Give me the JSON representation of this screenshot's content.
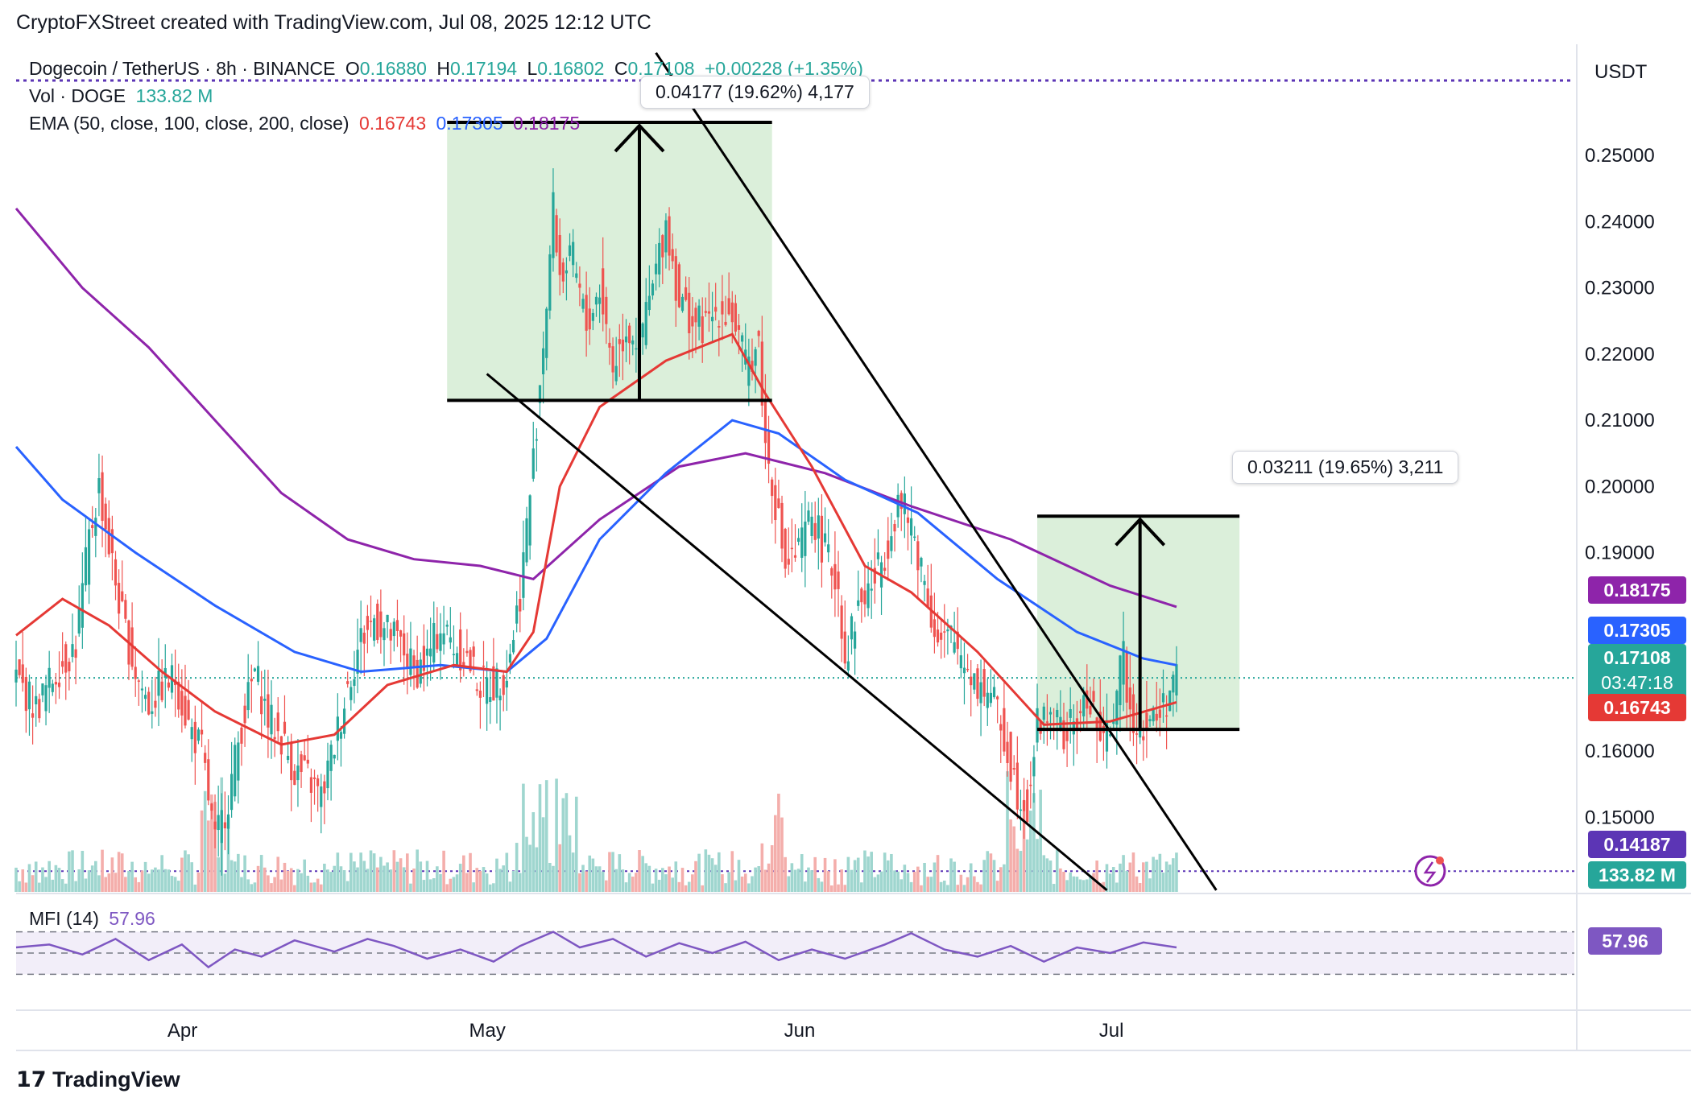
{
  "header": {
    "credit": "CryptoFXStreet created with TradingView.com, Jul 08, 2025 12:12 UTC",
    "symbol": "Dogecoin / TetherUS · 8h · BINANCE",
    "o_label": "O",
    "o_value": "0.16880",
    "h_label": "H",
    "h_value": "0.17194",
    "l_label": "L",
    "l_value": "0.16802",
    "c_label": "C",
    "c_value": "0.17108",
    "change": "+0.00228 (+1.35%)",
    "vol_label": "Vol · DOGE",
    "vol_value": "133.82 M",
    "ema_label": "EMA (50, close, 100, close, 200, close)",
    "ema50": "0.16743",
    "ema100": "0.17305",
    "ema200": "0.18175"
  },
  "currency": "USDT",
  "colors": {
    "up": "#26a69a",
    "down": "#ef5350",
    "ema50": "#e53935",
    "ema100": "#2962ff",
    "ema200": "#8e24aa",
    "mfi": "#7e57c2",
    "zone": "#d5ecd3"
  },
  "measure_boxes": [
    {
      "label": "0.04177 (19.62%) 4,177"
    },
    {
      "label": "0.03211 (19.65%) 3,211"
    }
  ],
  "price_tags": {
    "ema200": "0.18175",
    "ema100": "0.17305",
    "last": "0.17108",
    "countdown": "03:47:18",
    "ema50": "0.16743",
    "level": "0.14187",
    "volume": "133.82 M",
    "mfi": "57.96"
  },
  "mfi": {
    "label": "MFI (14)",
    "value": "57.96"
  },
  "footer": {
    "brand": "TradingView"
  },
  "chart_data": {
    "type": "candlestick",
    "title": "Dogecoin / TetherUS · 8h · BINANCE",
    "ylabel": "USDT",
    "ylim": [
      0.1385,
      0.2668
    ],
    "y_ticks": [
      "0.25000",
      "0.24000",
      "0.23000",
      "0.22000",
      "0.21000",
      "0.20000",
      "0.19000",
      "0.16000",
      "0.15000"
    ],
    "x_ticks": [
      "Apr",
      "May",
      "Jun",
      "Jul"
    ],
    "close_path": [
      [
        0,
        0.171
      ],
      [
        6,
        0.1665
      ],
      [
        12,
        0.172
      ],
      [
        18,
        0.176
      ],
      [
        22,
        0.192
      ],
      [
        25,
        0.2
      ],
      [
        28,
        0.191
      ],
      [
        32,
        0.18
      ],
      [
        36,
        0.172
      ],
      [
        40,
        0.167
      ],
      [
        44,
        0.17
      ],
      [
        48,
        0.171
      ],
      [
        52,
        0.164
      ],
      [
        56,
        0.16
      ],
      [
        60,
        0.146
      ],
      [
        64,
        0.153
      ],
      [
        68,
        0.164
      ],
      [
        72,
        0.172
      ],
      [
        76,
        0.165
      ],
      [
        80,
        0.162
      ],
      [
        84,
        0.157
      ],
      [
        88,
        0.156
      ],
      [
        92,
        0.153
      ],
      [
        96,
        0.161
      ],
      [
        100,
        0.17
      ],
      [
        104,
        0.177
      ],
      [
        108,
        0.18
      ],
      [
        112,
        0.178
      ],
      [
        116,
        0.176
      ],
      [
        120,
        0.172
      ],
      [
        124,
        0.174
      ],
      [
        128,
        0.179
      ],
      [
        132,
        0.176
      ],
      [
        136,
        0.174
      ],
      [
        140,
        0.17
      ],
      [
        144,
        0.17
      ],
      [
        148,
        0.172
      ],
      [
        152,
        0.184
      ],
      [
        156,
        0.204
      ],
      [
        160,
        0.228
      ],
      [
        162,
        0.242
      ],
      [
        164,
        0.232
      ],
      [
        168,
        0.234
      ],
      [
        172,
        0.224
      ],
      [
        176,
        0.23
      ],
      [
        180,
        0.218
      ],
      [
        184,
        0.224
      ],
      [
        188,
        0.222
      ],
      [
        192,
        0.23
      ],
      [
        196,
        0.24
      ],
      [
        200,
        0.228
      ],
      [
        204,
        0.225
      ],
      [
        208,
        0.224
      ],
      [
        212,
        0.227
      ],
      [
        216,
        0.226
      ],
      [
        220,
        0.218
      ],
      [
        224,
        0.222
      ],
      [
        226,
        0.206
      ],
      [
        228,
        0.201
      ],
      [
        232,
        0.188
      ],
      [
        236,
        0.19
      ],
      [
        240,
        0.196
      ],
      [
        244,
        0.19
      ],
      [
        248,
        0.185
      ],
      [
        250,
        0.174
      ],
      [
        254,
        0.182
      ],
      [
        258,
        0.185
      ],
      [
        262,
        0.19
      ],
      [
        266,
        0.198
      ],
      [
        270,
        0.194
      ],
      [
        274,
        0.186
      ],
      [
        278,
        0.176
      ],
      [
        282,
        0.177
      ],
      [
        286,
        0.174
      ],
      [
        290,
        0.17
      ],
      [
        294,
        0.169
      ],
      [
        298,
        0.162
      ],
      [
        302,
        0.154
      ],
      [
        305,
        0.152
      ],
      [
        308,
        0.164
      ],
      [
        312,
        0.166
      ],
      [
        316,
        0.162
      ],
      [
        320,
        0.165
      ],
      [
        324,
        0.168
      ],
      [
        328,
        0.16
      ],
      [
        332,
        0.169
      ],
      [
        334,
        0.174
      ],
      [
        336,
        0.166
      ],
      [
        340,
        0.164
      ],
      [
        344,
        0.165
      ],
      [
        348,
        0.169
      ],
      [
        350,
        0.1711
      ]
    ],
    "ema50_path": [
      [
        0,
        0.1775
      ],
      [
        14,
        0.183
      ],
      [
        28,
        0.179
      ],
      [
        44,
        0.172
      ],
      [
        60,
        0.166
      ],
      [
        80,
        0.161
      ],
      [
        96,
        0.1625
      ],
      [
        112,
        0.17
      ],
      [
        132,
        0.173
      ],
      [
        148,
        0.172
      ],
      [
        156,
        0.178
      ],
      [
        164,
        0.2
      ],
      [
        176,
        0.212
      ],
      [
        196,
        0.219
      ],
      [
        216,
        0.223
      ],
      [
        226,
        0.214
      ],
      [
        240,
        0.203
      ],
      [
        256,
        0.188
      ],
      [
        270,
        0.184
      ],
      [
        290,
        0.175
      ],
      [
        310,
        0.164
      ],
      [
        330,
        0.1645
      ],
      [
        350,
        0.1674
      ]
    ],
    "ema100_path": [
      [
        0,
        0.206
      ],
      [
        14,
        0.198
      ],
      [
        36,
        0.19
      ],
      [
        60,
        0.182
      ],
      [
        84,
        0.175
      ],
      [
        104,
        0.172
      ],
      [
        128,
        0.173
      ],
      [
        148,
        0.172
      ],
      [
        160,
        0.177
      ],
      [
        176,
        0.192
      ],
      [
        196,
        0.202
      ],
      [
        216,
        0.21
      ],
      [
        230,
        0.208
      ],
      [
        250,
        0.201
      ],
      [
        272,
        0.196
      ],
      [
        296,
        0.186
      ],
      [
        320,
        0.178
      ],
      [
        340,
        0.174
      ],
      [
        350,
        0.173
      ]
    ],
    "ema200_path": [
      [
        0,
        0.242
      ],
      [
        20,
        0.23
      ],
      [
        40,
        0.221
      ],
      [
        60,
        0.21
      ],
      [
        80,
        0.199
      ],
      [
        100,
        0.192
      ],
      [
        120,
        0.189
      ],
      [
        140,
        0.188
      ],
      [
        156,
        0.186
      ],
      [
        176,
        0.195
      ],
      [
        200,
        0.203
      ],
      [
        220,
        0.205
      ],
      [
        244,
        0.202
      ],
      [
        270,
        0.197
      ],
      [
        300,
        0.192
      ],
      [
        330,
        0.185
      ],
      [
        350,
        0.1818
      ]
    ],
    "mfi_path": [
      [
        0,
        58
      ],
      [
        10,
        62
      ],
      [
        20,
        48
      ],
      [
        30,
        70
      ],
      [
        40,
        40
      ],
      [
        50,
        62
      ],
      [
        58,
        30
      ],
      [
        66,
        55
      ],
      [
        74,
        45
      ],
      [
        84,
        68
      ],
      [
        96,
        52
      ],
      [
        106,
        70
      ],
      [
        114,
        60
      ],
      [
        124,
        42
      ],
      [
        134,
        55
      ],
      [
        144,
        38
      ],
      [
        152,
        60
      ],
      [
        162,
        80
      ],
      [
        170,
        58
      ],
      [
        180,
        70
      ],
      [
        190,
        45
      ],
      [
        200,
        64
      ],
      [
        210,
        50
      ],
      [
        220,
        66
      ],
      [
        230,
        40
      ],
      [
        240,
        55
      ],
      [
        250,
        42
      ],
      [
        262,
        62
      ],
      [
        270,
        78
      ],
      [
        280,
        55
      ],
      [
        290,
        45
      ],
      [
        300,
        60
      ],
      [
        310,
        38
      ],
      [
        320,
        58
      ],
      [
        330,
        50
      ],
      [
        340,
        65
      ],
      [
        350,
        58
      ]
    ],
    "mfi_bands": [
      80,
      50,
      20
    ],
    "annotations": {
      "flag_zone": {
        "top": 0.255,
        "bottom": 0.213,
        "measure": "0.04177 (19.62%) 4,177"
      },
      "target_zone": {
        "top": 0.1955,
        "bottom": 0.1633,
        "measure": "0.03211 (19.65%) 3,211"
      },
      "level_line": 0.14187
    }
  }
}
